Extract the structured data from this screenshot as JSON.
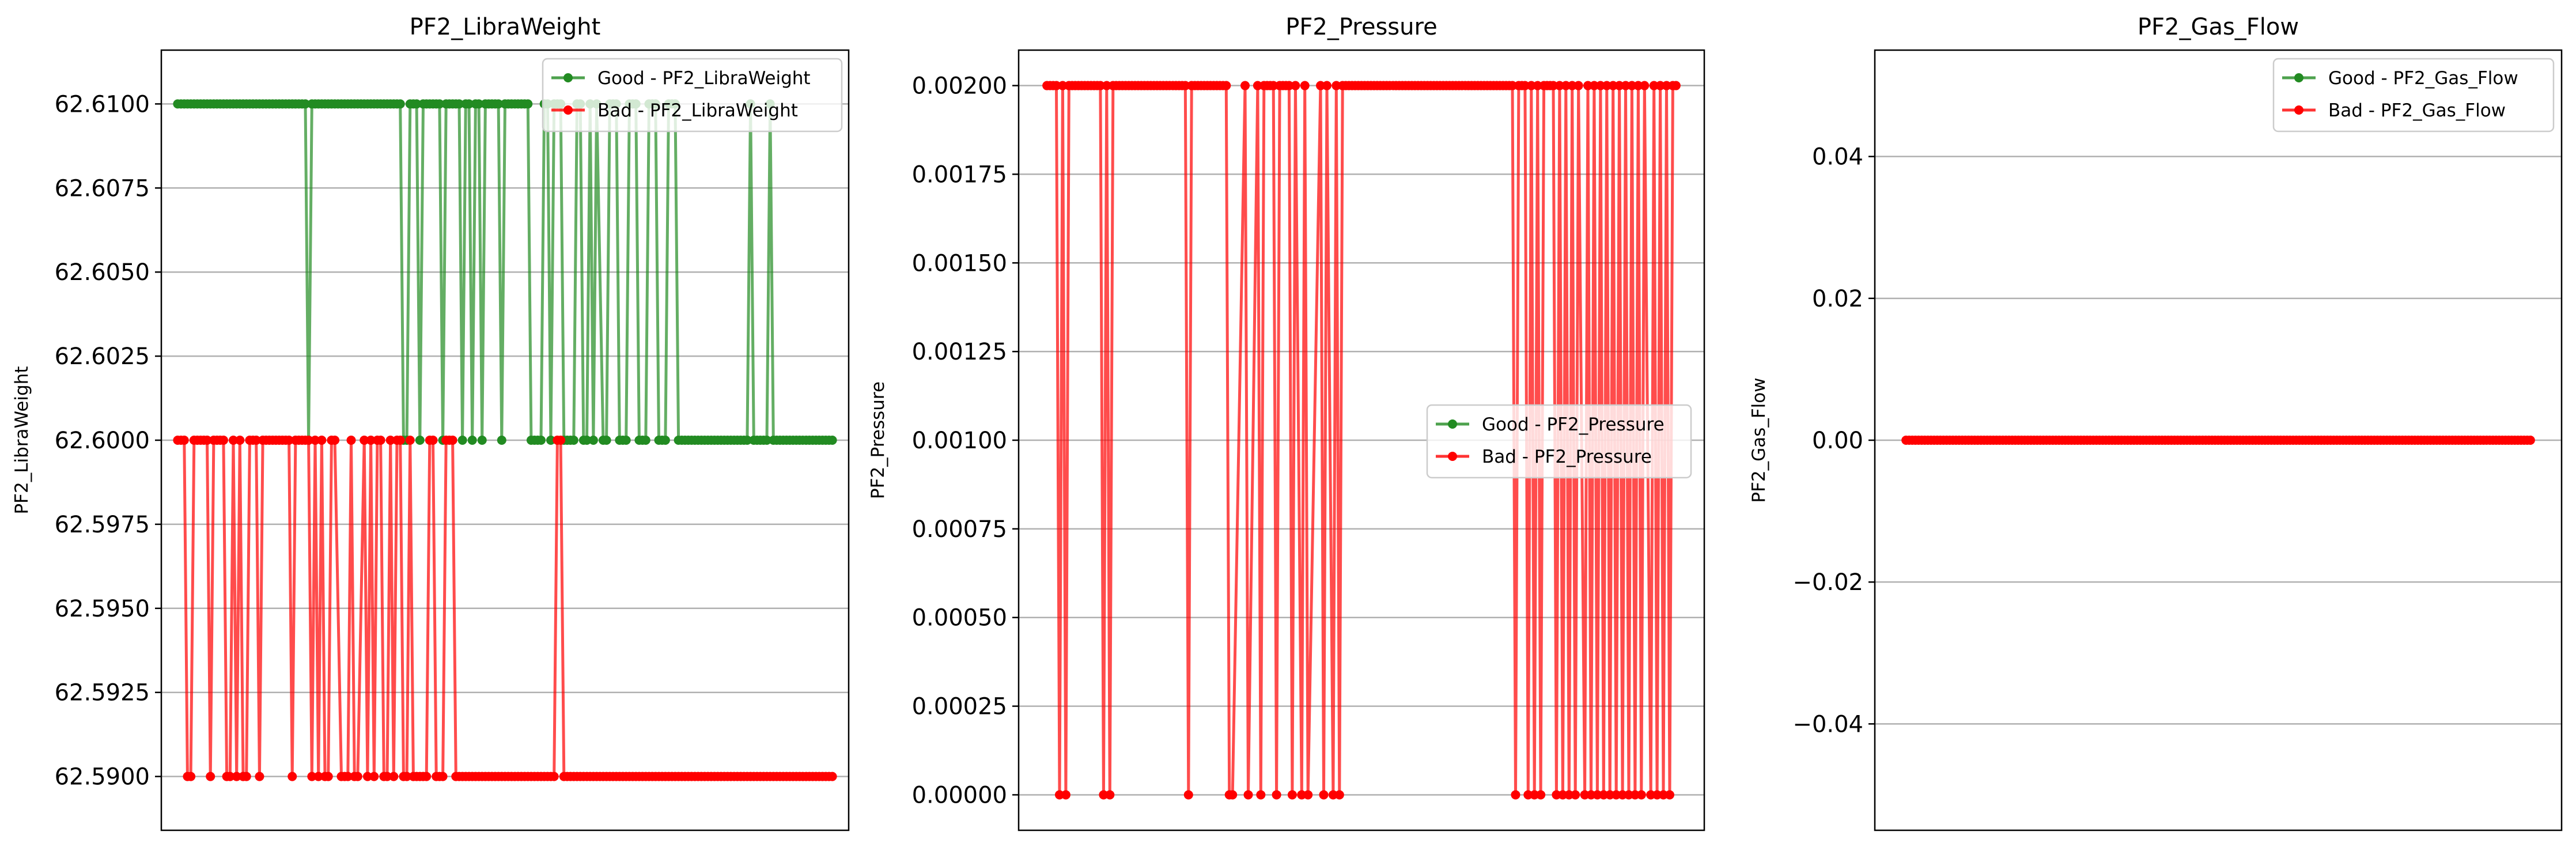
{
  "chart_data": [
    {
      "type": "line",
      "title": "PF2_LibraWeight",
      "xlabel": "",
      "ylabel": "PF2_LibraWeight",
      "x_ticks_visible": false,
      "ylim": [
        62.5884,
        62.6116
      ],
      "yticks": [
        62.59,
        62.5925,
        62.595,
        62.5975,
        62.6,
        62.6025,
        62.605,
        62.6075,
        62.61
      ],
      "ytick_labels": [
        "62.5900",
        "62.5925",
        "62.5950",
        "62.5975",
        "62.6000",
        "62.6025",
        "62.6050",
        "62.6075",
        "62.6100"
      ],
      "grid": "horizontal",
      "legend_position": "upper right",
      "legend": [
        "Good - PF2_LibraWeight",
        "Bad - PF2_LibraWeight"
      ],
      "xlim": [
        -5,
        205
      ],
      "series": [
        {
          "name": "Good - PF2_LibraWeight",
          "color": "#228b22",
          "x": [
            0,
            39,
            40,
            41,
            68,
            69,
            70,
            71,
            72,
            73,
            74,
            75,
            80,
            81,
            82,
            86,
            87,
            88,
            89,
            90,
            91,
            92,
            93,
            94,
            95,
            96,
            97,
            98,
            99,
            100,
            101,
            107,
            108,
            111,
            112,
            113,
            114,
            115,
            117,
            118,
            119,
            121,
            122,
            123,
            124,
            125,
            126,
            127,
            128,
            130,
            131,
            132,
            134,
            135,
            137,
            138,
            140,
            141,
            143,
            144,
            145,
            146,
            147,
            149,
            150,
            151,
            152,
            153,
            174,
            175,
            176,
            180,
            181,
            182,
            200
          ],
          "y": [
            62.61,
            62.61,
            62.6,
            62.61,
            62.61,
            62.6,
            62.6,
            62.61,
            62.61,
            62.61,
            62.6,
            62.61,
            62.61,
            62.6,
            62.61,
            62.61,
            62.6,
            62.61,
            62.61,
            62.6,
            62.61,
            62.61,
            62.6,
            62.61,
            62.61,
            62.61,
            62.61,
            62.61,
            62.6,
            62.61,
            62.61,
            62.61,
            62.6,
            62.6,
            62.61,
            62.61,
            62.6,
            62.61,
            62.61,
            62.6,
            62.6,
            62.6,
            62.61,
            62.61,
            62.6,
            62.6,
            62.61,
            62.6,
            62.61,
            62.6,
            62.6,
            62.61,
            62.61,
            62.6,
            62.6,
            62.61,
            62.61,
            62.6,
            62.6,
            62.61,
            62.61,
            62.61,
            62.6,
            62.6,
            62.61,
            62.61,
            62.61,
            62.6,
            62.6,
            62.61,
            62.6,
            62.6,
            62.61,
            62.6,
            62.6
          ]
        },
        {
          "name": "Bad - PF2_LibraWeight",
          "color": "#ff0000",
          "x": [
            0,
            2,
            3,
            4,
            5,
            6,
            9,
            10,
            11,
            12,
            14,
            15,
            16,
            17,
            18,
            19,
            20,
            21,
            22,
            24,
            25,
            26,
            27,
            29,
            30,
            31,
            32,
            33,
            34,
            35,
            36,
            37,
            40,
            41,
            42,
            43,
            44,
            45,
            46,
            47,
            48,
            50,
            51,
            52,
            53,
            54,
            55,
            57,
            58,
            59,
            60,
            61,
            62,
            63,
            64,
            65,
            66,
            67,
            68,
            69,
            70,
            71,
            72,
            73,
            74,
            75,
            76,
            77,
            78,
            79,
            80,
            81,
            82,
            83,
            84,
            85,
            86,
            87,
            88,
            89,
            90,
            91,
            92,
            93,
            94,
            95,
            96,
            115,
            116,
            117,
            118,
            200
          ],
          "y": [
            62.6,
            62.6,
            62.59,
            62.59,
            62.6,
            62.6,
            62.6,
            62.59,
            62.6,
            62.6,
            62.6,
            62.59,
            62.59,
            62.6,
            62.59,
            62.6,
            62.59,
            62.59,
            62.6,
            62.6,
            62.59,
            62.6,
            62.6,
            62.6,
            62.6,
            62.6,
            62.6,
            62.6,
            62.6,
            62.59,
            62.6,
            62.6,
            62.6,
            62.59,
            62.6,
            62.59,
            62.6,
            62.59,
            62.59,
            62.6,
            62.6,
            62.59,
            62.59,
            62.59,
            62.6,
            62.59,
            62.59,
            62.6,
            62.59,
            62.6,
            62.59,
            62.6,
            62.6,
            62.59,
            62.59,
            62.6,
            62.59,
            62.6,
            62.6,
            62.59,
            62.59,
            62.6,
            62.59,
            62.59,
            62.59,
            62.59,
            62.59,
            62.6,
            62.6,
            62.59,
            62.59,
            62.59,
            62.6,
            62.6,
            62.6,
            62.59,
            62.59,
            62.59,
            62.59,
            62.59,
            62.59,
            62.59,
            62.59,
            62.59,
            62.59,
            62.59,
            62.59,
            62.59,
            62.6,
            62.6,
            62.59,
            62.59
          ]
        }
      ]
    },
    {
      "type": "line",
      "title": "PF2_Pressure",
      "xlabel": "",
      "ylabel": "PF2_Pressure",
      "x_ticks_visible": false,
      "ylim": [
        -0.0001,
        0.0021
      ],
      "yticks": [
        0,
        0.00025,
        0.0005,
        0.00075,
        0.001,
        0.00125,
        0.0015,
        0.00175,
        0.002
      ],
      "ytick_labels": [
        "0.00000",
        "0.00025",
        "0.00050",
        "0.00075",
        "0.00100",
        "0.00125",
        "0.00150",
        "0.00175",
        "0.00200"
      ],
      "grid": "horizontal",
      "legend_position": "center right",
      "legend": [
        "Good - PF2_Pressure",
        "Bad - PF2_Pressure"
      ],
      "xlim": [
        -9,
        209
      ],
      "series": [
        {
          "name": "Good - PF2_Pressure",
          "color": "#228b22",
          "x": [],
          "y": []
        },
        {
          "name": "Bad - PF2_Pressure",
          "color": "#ff0000",
          "x": [
            0,
            3,
            4,
            5,
            6,
            7,
            17,
            18,
            19,
            20,
            21,
            44,
            45,
            46,
            57,
            58,
            59,
            63,
            64,
            67,
            68,
            69,
            72,
            73,
            74,
            77,
            78,
            79,
            81,
            82,
            83,
            87,
            88,
            89,
            91,
            92,
            93,
            94,
            148,
            149,
            150,
            152,
            153,
            154,
            155,
            156,
            157,
            158,
            161,
            162,
            163,
            164,
            165,
            166,
            167,
            168,
            169,
            171,
            172,
            173,
            174,
            175,
            176,
            177,
            178,
            179,
            180,
            181,
            182,
            183,
            184,
            185,
            186,
            187,
            188,
            189,
            190,
            192,
            193,
            194,
            195,
            196,
            197,
            198,
            199,
            200
          ],
          "y": [
            0.002,
            0.002,
            0,
            0.002,
            0,
            0.002,
            0.002,
            0,
            0.002,
            0,
            0.002,
            0.002,
            0,
            0.002,
            0.002,
            0,
            0,
            0.002,
            0,
            0.002,
            0,
            0.002,
            0.002,
            0,
            0.002,
            0.002,
            0,
            0.002,
            0,
            0.002,
            0,
            0.002,
            0,
            0.002,
            0,
            0.002,
            0,
            0.002,
            0.002,
            0,
            0.002,
            0.002,
            0,
            0.002,
            0,
            0.002,
            0,
            0.002,
            0.002,
            0,
            0.002,
            0,
            0.002,
            0,
            0.002,
            0,
            0.002,
            0,
            0.002,
            0,
            0.002,
            0,
            0.002,
            0,
            0.002,
            0,
            0.002,
            0,
            0.002,
            0,
            0.002,
            0,
            0.002,
            0,
            0.002,
            0,
            0.002,
            0,
            0.002,
            0,
            0.002,
            0,
            0.002,
            0,
            0.002,
            0.002
          ]
        }
      ]
    },
    {
      "type": "line",
      "title": "PF2_Gas_Flow",
      "xlabel": "",
      "ylabel": "PF2_Gas_Flow",
      "x_ticks_visible": false,
      "ylim": [
        -0.055,
        0.055
      ],
      "yticks": [
        -0.04,
        -0.02,
        0,
        0.02,
        0.04
      ],
      "ytick_labels": [
        "−0.04",
        "−0.02",
        "0.00",
        "0.02",
        "0.04"
      ],
      "grid": "horizontal",
      "legend_position": "upper right",
      "legend": [
        "Good - PF2_Gas_Flow",
        "Bad - PF2_Gas_Flow"
      ],
      "xlim": [
        -10,
        210
      ],
      "series": [
        {
          "name": "Good - PF2_Gas_Flow",
          "color": "#228b22",
          "x": [],
          "y": []
        },
        {
          "name": "Bad - PF2_Gas_Flow",
          "color": "#ff0000",
          "x": [
            0,
            200
          ],
          "y": [
            0,
            0
          ]
        }
      ]
    }
  ]
}
